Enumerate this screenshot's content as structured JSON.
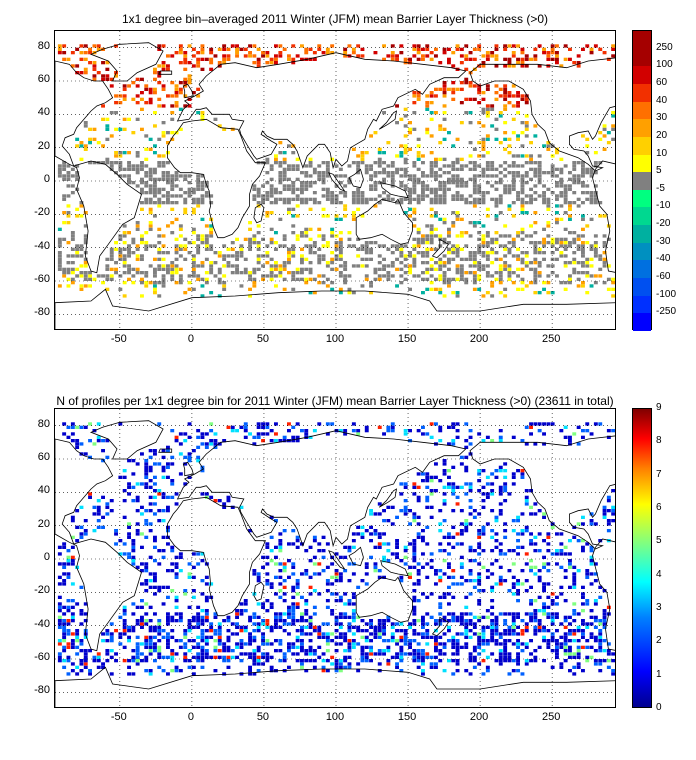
{
  "top_map": {
    "title": "1x1 degree bin–averaged 2011 Winter (JFM) mean Barrier Layer Thickness (>0)",
    "colorbar_ticks": [
      "250",
      "100",
      "60",
      "40",
      "30",
      "20",
      "10",
      "5",
      "-5",
      "-10",
      "-20",
      "-30",
      "-40",
      "-60",
      "-100",
      "-250"
    ],
    "colorbar_colors": [
      "#a50000",
      "#d20000",
      "#f23000",
      "#ff7000",
      "#ffa000",
      "#ffd000",
      "#ffff00",
      "#808080",
      "#00ff80",
      "#00d890",
      "#00b0a0",
      "#0090c0",
      "#0070e0",
      "#0050f0",
      "#0030ff",
      "#0000ff"
    ]
  },
  "bottom_map": {
    "title": "N of profiles per 1x1 degree bin for 2011 Winter (JFM) mean Barrier Layer Thickness (>0) (23611 in total)",
    "colorbar_ticks": [
      "9",
      "8",
      "7",
      "6",
      "5",
      "4",
      "3",
      "2",
      "1",
      "0"
    ]
  },
  "axes": {
    "y_ticks": [
      "80",
      "60",
      "40",
      "20",
      "0",
      "-20",
      "-40",
      "-60",
      "-80"
    ],
    "x_ticks": [
      "-50",
      "0",
      "50",
      "100",
      "150",
      "200",
      "250"
    ]
  },
  "chart_data": [
    {
      "type": "heatmap",
      "title": "1x1 degree bin–averaged 2011 Winter (JFM) mean Barrier Layer Thickness (>0)",
      "xlim": [
        -95,
        295
      ],
      "ylim": [
        -90,
        90
      ],
      "x_ticks": [
        -50,
        0,
        50,
        100,
        150,
        200,
        250
      ],
      "y_ticks": [
        80,
        60,
        40,
        20,
        0,
        -20,
        -40,
        -60,
        -80
      ],
      "grid": true,
      "colorbar_levels": [
        250,
        100,
        60,
        40,
        30,
        20,
        10,
        5,
        -5,
        -10,
        -20,
        -30,
        -40,
        -60,
        -100,
        -250
      ]
    },
    {
      "type": "heatmap",
      "title": "N of profiles per 1x1 degree bin for 2011 Winter (JFM) mean Barrier Layer Thickness (>0) (23611 in total)",
      "xlim": [
        -95,
        295
      ],
      "ylim": [
        -90,
        90
      ],
      "x_ticks": [
        -50,
        0,
        50,
        100,
        150,
        200,
        250
      ],
      "y_ticks": [
        80,
        60,
        40,
        20,
        0,
        -20,
        -40,
        -60,
        -80
      ],
      "grid": true,
      "colorbar_range": [
        0,
        9
      ],
      "total_profiles": 23611
    }
  ]
}
